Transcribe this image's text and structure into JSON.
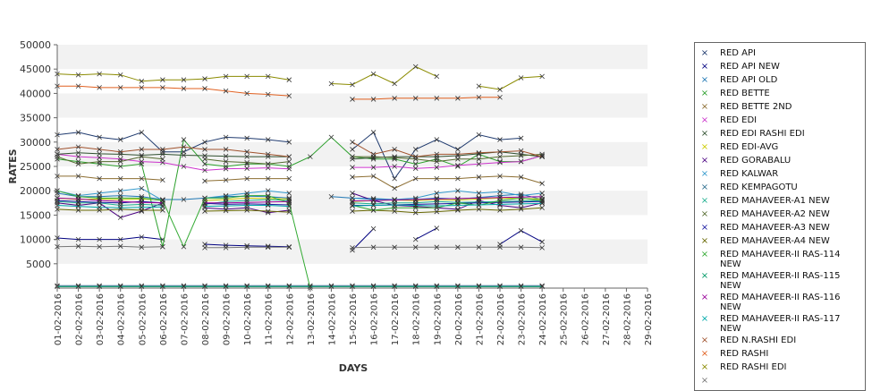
{
  "chart_data": {
    "type": "line",
    "title": "",
    "xlabel": "DAYS",
    "ylabel": "RATES",
    "ylim": [
      0,
      50000
    ],
    "yticks": [
      5000,
      10000,
      15000,
      20000,
      25000,
      30000,
      35000,
      40000,
      45000,
      50000
    ],
    "grid": "alternating-bands",
    "legend": "right",
    "categories": [
      "01-02-2016",
      "02-02-2016",
      "03-02-2016",
      "04-02-2016",
      "05-02-2016",
      "06-02-2016",
      "07-02-2016",
      "08-02-2016",
      "09-02-2016",
      "10-02-2016",
      "11-02-2016",
      "12-02-2016",
      "13-02-2016",
      "14-02-2016",
      "15-02-2016",
      "16-02-2016",
      "17-02-2016",
      "18-02-2016",
      "19-02-2016",
      "20-02-2016",
      "21-02-2016",
      "22-02-2016",
      "23-02-2016",
      "24-02-2016",
      "25-02-2016",
      "26-02-2016",
      "27-02-2016",
      "28-02-2016",
      "29-02-2016"
    ],
    "series": [
      {
        "name": "RED API",
        "color": "#1f3a6e",
        "values": [
          31500,
          32000,
          31000,
          30500,
          32000,
          28000,
          28000,
          30000,
          31000,
          30800,
          30500,
          30000,
          null,
          null,
          28500,
          32000,
          22500,
          28500,
          30500,
          28500,
          31500,
          30500,
          30800,
          null,
          null,
          null,
          null,
          null,
          null
        ]
      },
      {
        "name": "RED API NEW",
        "color": "#000080",
        "values": [
          10300,
          10000,
          10000,
          10000,
          10500,
          10000,
          null,
          9000,
          8800,
          8700,
          8600,
          8500,
          null,
          null,
          7800,
          12200,
          null,
          10000,
          12300,
          null,
          null,
          9000,
          11800,
          9500,
          null,
          null,
          null,
          null,
          null
        ]
      },
      {
        "name": "RED API OLD",
        "color": "#1f77b4",
        "values": [
          19500,
          18800,
          18800,
          19000,
          18800,
          18200,
          18200,
          18500,
          18800,
          18900,
          18800,
          18500,
          null,
          18800,
          18500,
          18400,
          18200,
          18200,
          18500,
          18300,
          18600,
          19000,
          19300,
          18200,
          null,
          null,
          null,
          null,
          null
        ]
      },
      {
        "name": "RED BETTE",
        "color": "#2ca02c",
        "values": [
          26500,
          26000,
          25500,
          25000,
          25500,
          8500,
          30500,
          25500,
          25000,
          25500,
          25500,
          25000,
          27000,
          31000,
          27000,
          26500,
          26500,
          25500,
          26500,
          25000,
          27500,
          26000,
          26000,
          27200,
          null,
          null,
          null,
          null,
          null
        ]
      },
      {
        "name": "RED BETTE 2ND",
        "color": "#8c6d31",
        "values": [
          23000,
          23000,
          22500,
          22500,
          22500,
          22200,
          null,
          22000,
          22200,
          22500,
          22500,
          22500,
          null,
          null,
          22800,
          23000,
          20500,
          22500,
          22500,
          22500,
          22800,
          23000,
          22800,
          21500,
          null,
          null,
          null,
          null,
          null
        ]
      },
      {
        "name": "RED EDI",
        "color": "#cc33cc",
        "values": [
          27500,
          27000,
          26800,
          26500,
          26000,
          25800,
          25000,
          24200,
          24500,
          24600,
          24700,
          24500,
          null,
          null,
          24800,
          24800,
          25000,
          24600,
          24800,
          25200,
          25500,
          25800,
          26000,
          27200,
          null,
          null,
          null,
          null,
          null
        ]
      },
      {
        "name": "RED EDI RASHI EDI",
        "color": "#2f4f2f",
        "values": [
          27500,
          27800,
          27600,
          27500,
          27300,
          27500,
          27300,
          27200,
          27100,
          27000,
          27000,
          27000,
          null,
          null,
          26500,
          26800,
          27000,
          27000,
          27000,
          27200,
          27600,
          28000,
          27500,
          27000,
          null,
          null,
          null,
          null,
          null
        ]
      },
      {
        "name": "RED EDI-AVG",
        "color": "#cccc00",
        "values": [
          18500,
          18200,
          18300,
          18200,
          18300,
          18100,
          null,
          18000,
          18200,
          18500,
          18400,
          18300,
          null,
          null,
          17800,
          18000,
          18100,
          18000,
          18200,
          18100,
          18300,
          18500,
          18400,
          18300,
          null,
          null,
          null,
          null,
          null
        ]
      },
      {
        "name": "RED GORABALU",
        "color": "#4b0082",
        "values": [
          17500,
          17000,
          17500,
          14500,
          15800,
          17500,
          null,
          16500,
          16200,
          16500,
          15500,
          16000,
          null,
          null,
          19500,
          18000,
          17000,
          16800,
          16500,
          16200,
          18000,
          17000,
          16500,
          17500,
          null,
          null,
          null,
          null,
          null
        ]
      },
      {
        "name": "RED KALWAR",
        "color": "#3399cc",
        "values": [
          20000,
          19000,
          19500,
          20000,
          20500,
          18000,
          null,
          18500,
          19000,
          19500,
          20000,
          19500,
          null,
          null,
          18500,
          18200,
          18200,
          18500,
          19500,
          20000,
          19500,
          19800,
          19000,
          19500,
          null,
          null,
          null,
          null,
          null
        ]
      },
      {
        "name": "RED KEMPAGOTU",
        "color": "#2f6f8f",
        "values": [
          500,
          500,
          500,
          500,
          500,
          500,
          500,
          500,
          500,
          500,
          500,
          500,
          500,
          500,
          500,
          500,
          500,
          500,
          500,
          500,
          500,
          500,
          500,
          500,
          null,
          null,
          null,
          null,
          null
        ]
      },
      {
        "name": "RED MAHAVEER-A1 NEW",
        "color": "#20b090",
        "values": [
          17800,
          17500,
          17500,
          17000,
          17200,
          17000,
          null,
          17200,
          17800,
          18000,
          18200,
          18000,
          null,
          null,
          17500,
          17300,
          17500,
          17500,
          17800,
          17600,
          17700,
          17800,
          17900,
          18000,
          null,
          null,
          null,
          null,
          null
        ]
      },
      {
        "name": "RED MAHAVEER-A2 NEW",
        "color": "#556b2f",
        "values": [
          27000,
          25500,
          26000,
          26000,
          27000,
          26500,
          null,
          26500,
          26000,
          25800,
          25500,
          26000,
          null,
          null,
          27000,
          27000,
          26800,
          26500,
          26000,
          26500,
          26500,
          27000,
          27200,
          27500,
          null,
          null,
          null,
          null,
          null
        ]
      },
      {
        "name": "RED MAHAVEER-A3 NEW",
        "color": "#1a1aa0",
        "values": [
          18000,
          17800,
          17600,
          17500,
          17800,
          17500,
          null,
          17400,
          17200,
          17300,
          17200,
          17100,
          null,
          null,
          17000,
          17000,
          17100,
          17200,
          17300,
          17400,
          17500,
          17600,
          17700,
          17800,
          null,
          null,
          null,
          null,
          null
        ]
      },
      {
        "name": "RED MAHAVEER-A4 NEW",
        "color": "#666600",
        "values": [
          16200,
          16000,
          16000,
          16200,
          16000,
          16000,
          null,
          15800,
          15900,
          16000,
          15800,
          15600,
          null,
          null,
          15800,
          16000,
          15800,
          15500,
          15700,
          16000,
          16200,
          16000,
          16200,
          16500,
          null,
          null,
          null,
          null,
          null
        ]
      },
      {
        "name": "RED MAHAVEER-II RAS-114 NEW",
        "color": "#33aa33",
        "values": [
          20000,
          18800,
          18500,
          18500,
          18500,
          18000,
          8500,
          18500,
          18500,
          19000,
          19000,
          17500,
          0,
          null,
          17000,
          16000,
          16500,
          16500,
          16500,
          17500,
          17000,
          18000,
          18500,
          18000,
          null,
          null,
          null,
          null,
          null
        ]
      },
      {
        "name": "RED MAHAVEER-II RAS-115 NEW",
        "color": "#009966",
        "values": [
          300,
          300,
          300,
          300,
          300,
          300,
          300,
          300,
          300,
          300,
          300,
          300,
          300,
          300,
          300,
          300,
          300,
          300,
          300,
          300,
          300,
          300,
          300,
          300,
          null,
          null,
          null,
          null,
          null
        ]
      },
      {
        "name": "RED MAHAVEER-II RAS-116 NEW",
        "color": "#990099",
        "values": [
          18500,
          18300,
          18000,
          17800,
          17600,
          17500,
          null,
          17500,
          17500,
          17600,
          17700,
          17800,
          null,
          null,
          17900,
          18000,
          18100,
          18200,
          18300,
          18400,
          18500,
          18600,
          18700,
          18800,
          null,
          null,
          null,
          null,
          null
        ]
      },
      {
        "name": "RED MAHAVEER-II RAS-117 NEW",
        "color": "#00aaaa",
        "values": [
          17000,
          16800,
          16600,
          16500,
          16600,
          16700,
          null,
          16800,
          16900,
          17000,
          17000,
          16800,
          null,
          null,
          16900,
          17000,
          17100,
          17000,
          16900,
          17000,
          17100,
          17200,
          17300,
          17400,
          null,
          null,
          null,
          null,
          null
        ]
      },
      {
        "name": "RED N.RASHI EDI",
        "color": "#a0522d",
        "values": [
          28500,
          29000,
          28500,
          28000,
          28500,
          28500,
          29000,
          28500,
          28500,
          28000,
          27500,
          27000,
          null,
          null,
          30000,
          27500,
          28500,
          27000,
          27500,
          27500,
          27800,
          28000,
          28200,
          27000,
          null,
          null,
          null,
          null,
          null
        ]
      },
      {
        "name": "RED RASHI",
        "color": "#e06020",
        "values": [
          41500,
          41500,
          41200,
          41200,
          41200,
          41200,
          41000,
          41000,
          40500,
          40000,
          39800,
          39500,
          null,
          null,
          38800,
          38800,
          39000,
          39000,
          39000,
          39000,
          39200,
          39200,
          null,
          null,
          null,
          null,
          null,
          null,
          null
        ]
      },
      {
        "name": "RED RASHI EDI",
        "color": "#8b8b00",
        "values": [
          44000,
          43800,
          44000,
          43800,
          42500,
          42800,
          42800,
          43000,
          43500,
          43500,
          43500,
          42800,
          null,
          42000,
          41800,
          44000,
          42000,
          45500,
          43500,
          null,
          41500,
          40800,
          43200,
          43500,
          null,
          null,
          null,
          null,
          null
        ]
      },
      {
        "name": "",
        "color": "#777777",
        "values": [
          8500,
          8600,
          8500,
          8600,
          8400,
          8500,
          null,
          8300,
          8300,
          8400,
          8400,
          8400,
          null,
          null,
          8300,
          8400,
          8400,
          8400,
          8400,
          8400,
          8400,
          8400,
          8400,
          8300,
          null,
          null,
          null,
          null,
          null
        ]
      }
    ]
  }
}
